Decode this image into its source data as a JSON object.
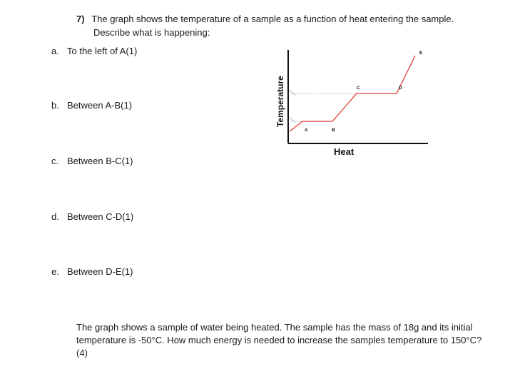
{
  "question": {
    "number": "7)",
    "line1": "The graph shows the temperature of a sample as a function of heat entering the sample.",
    "line2": "Describe what is happening:"
  },
  "parts": [
    {
      "letter": "a.",
      "text": "To the left of A(1)"
    },
    {
      "letter": "b.",
      "text": "Between A-B(1)"
    },
    {
      "letter": "c.",
      "text": "Between B-C(1)"
    },
    {
      "letter": "d.",
      "text": "Between C-D(1)"
    },
    {
      "letter": "e.",
      "text": "Between D-E(1)"
    }
  ],
  "graph": {
    "y_label": "Temperature",
    "x_label": "Heat",
    "points": [
      "A",
      "B",
      "C",
      "D",
      "E"
    ],
    "line_color": "#e23b3b"
  },
  "final_question": {
    "text": "The graph shows a sample of water being heated. The sample has the mass of 18g and its initial temperature is -50°C. How much energy is needed to increase the samples temperature to 150°C?(4)"
  }
}
